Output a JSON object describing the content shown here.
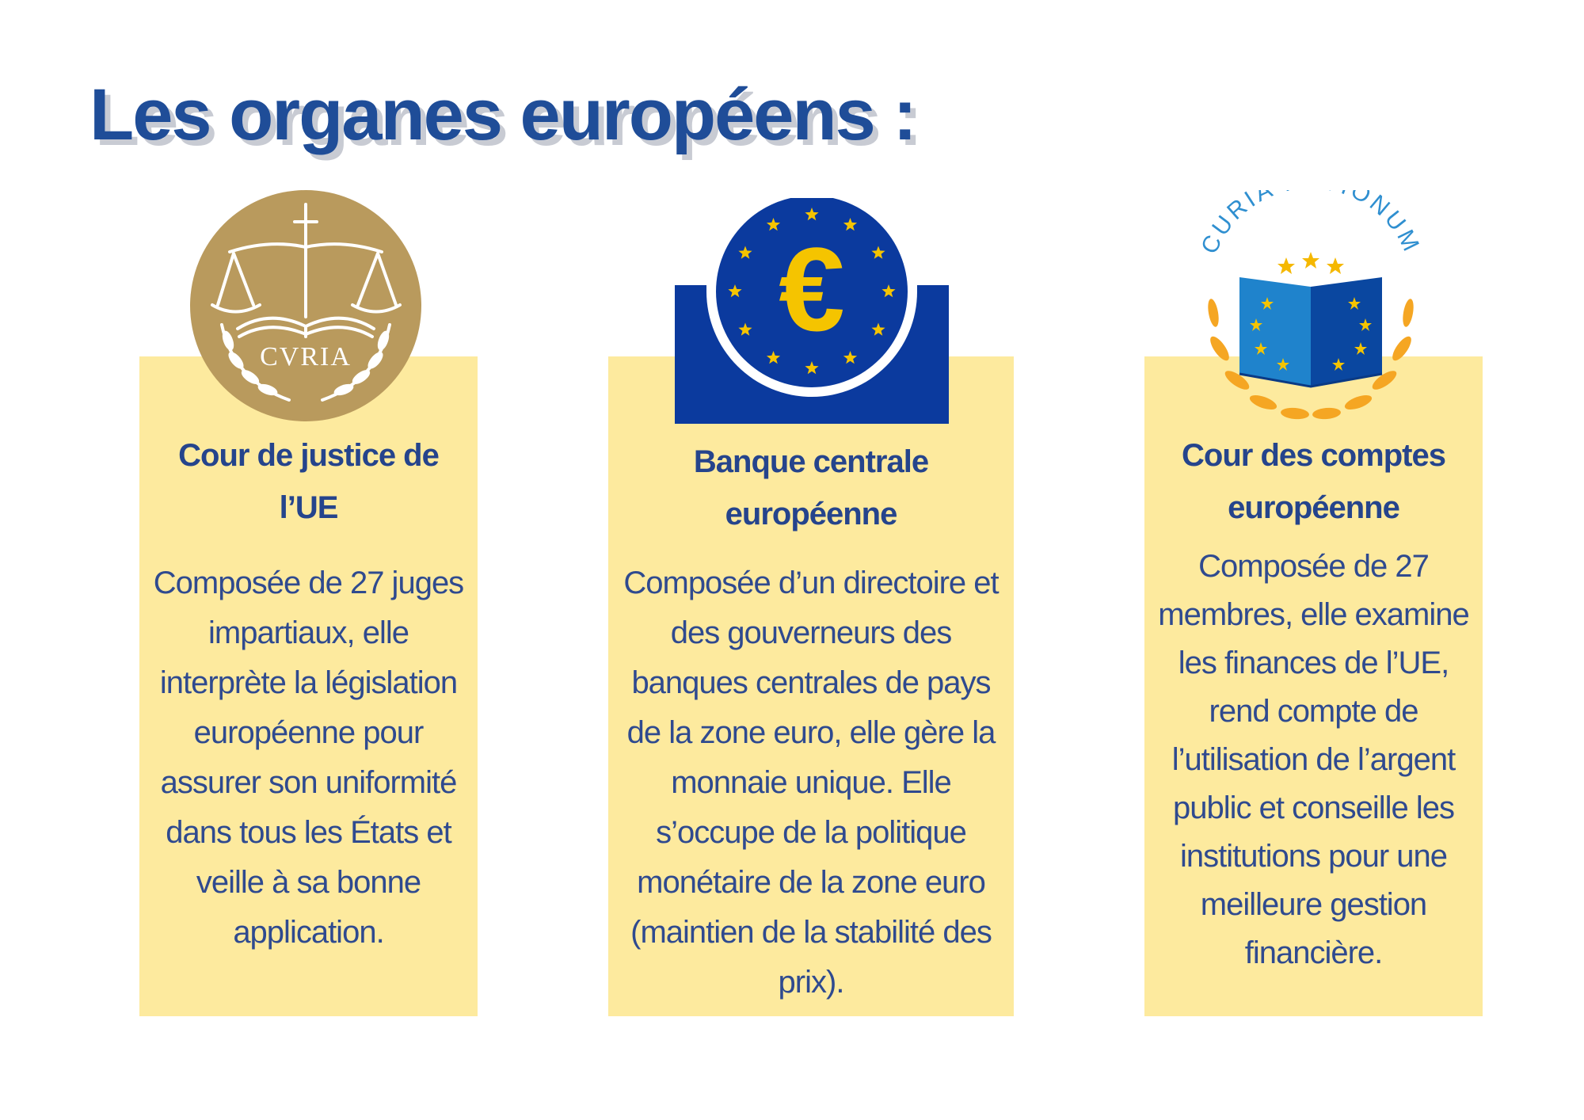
{
  "page": {
    "title": "Les organes européens :"
  },
  "colors": {
    "title_blue": "#1f4d98",
    "title_shadow": "#c8cbd3",
    "card_yellow": "#fdea9e",
    "text_blue": "#2f4a8f",
    "gold": "#b99a5d",
    "eu_blue": "#0b3a9e",
    "euro_yellow": "#f5c400"
  },
  "cards": [
    {
      "title": "Cour de justice de l’UE",
      "body": "Composée de 27 juges impartiaux, elle interprète la législation européenne pour assurer son uniformité dans tous les États et veille à sa bonne application.",
      "logo": {
        "icon": "curia-scales-emblem",
        "text": "CVRIA"
      }
    },
    {
      "title": "Banque centrale européenne",
      "body": "Composée d’un directoire et des gouverneurs des banques centrales de pays de la zone euro, elle gère la monnaie unique. Elle s’occupe de la politique monétaire de la zone euro (maintien de la stabilité des prix).",
      "logo": {
        "icon": "euro-stars-emblem",
        "text": "€"
      }
    },
    {
      "title": "Cour des comptes européenne",
      "body": "Composée de 27 membres, elle examine les finances de l’UE, rend compte de l’utilisation de l’argent public et conseille les institutions pour une meilleure gestion financière.",
      "logo": {
        "icon": "open-book-stars-emblem",
        "text": "CURIA RATIONUM"
      }
    }
  ]
}
